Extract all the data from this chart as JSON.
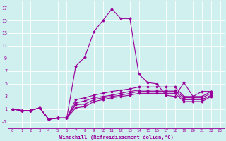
{
  "xlabel": "Windchill (Refroidissement éolien,°C)",
  "bg_color": "#d0f0f0",
  "line_color": "#990099",
  "grid_color": "#ffffff",
  "ylim": [
    -2,
    18
  ],
  "xlim": [
    -0.5,
    23.5
  ],
  "lines": [
    [
      1.0,
      0.8,
      0.8,
      1.2,
      -0.6,
      -0.4,
      -0.4,
      7.8,
      9.2,
      13.2,
      15.0,
      16.8,
      15.3,
      15.3,
      6.5,
      5.2,
      5.0,
      3.2,
      3.0,
      5.2,
      3.0,
      3.8,
      3.8
    ],
    [
      1.0,
      0.8,
      0.8,
      1.2,
      -0.6,
      -0.4,
      -0.4,
      2.5,
      2.8,
      3.2,
      3.5,
      3.8,
      4.0,
      4.2,
      4.5,
      4.5,
      4.5,
      4.5,
      4.5,
      3.0,
      3.0,
      3.0,
      3.8
    ],
    [
      1.0,
      0.8,
      0.8,
      1.2,
      -0.6,
      -0.4,
      -0.4,
      2.0,
      2.3,
      2.8,
      3.0,
      3.2,
      3.5,
      3.8,
      4.0,
      4.0,
      4.0,
      4.0,
      4.0,
      2.8,
      2.8,
      2.8,
      3.5
    ],
    [
      1.0,
      0.8,
      0.8,
      1.2,
      -0.6,
      -0.4,
      -0.4,
      1.7,
      1.8,
      2.5,
      2.8,
      3.0,
      3.2,
      3.5,
      3.8,
      3.8,
      3.8,
      3.8,
      3.8,
      2.5,
      2.5,
      2.5,
      3.2
    ],
    [
      1.0,
      0.8,
      0.8,
      1.2,
      -0.6,
      -0.4,
      -0.4,
      1.2,
      1.4,
      2.2,
      2.5,
      2.8,
      3.0,
      3.2,
      3.5,
      3.5,
      3.5,
      3.5,
      3.5,
      2.2,
      2.2,
      2.2,
      3.0
    ]
  ]
}
